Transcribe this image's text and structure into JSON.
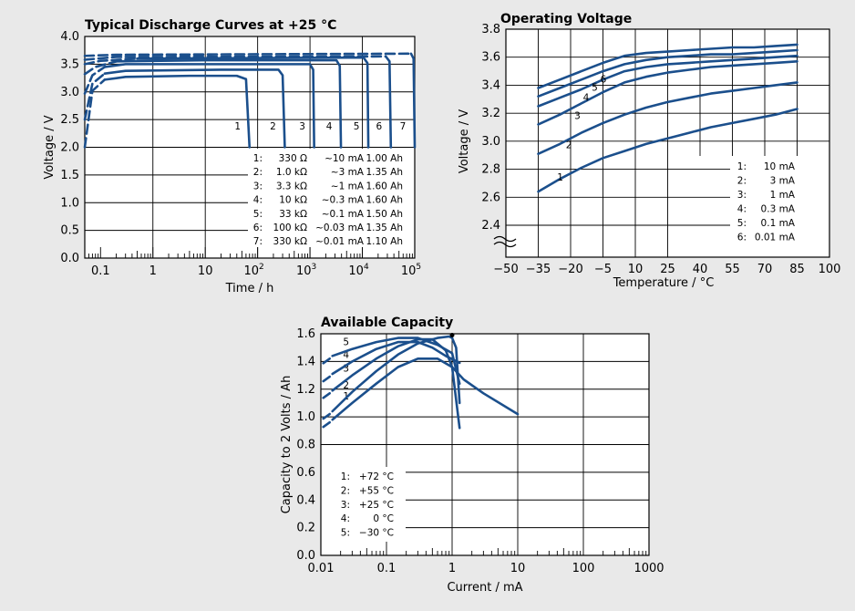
{
  "colors": {
    "background": "#e9e9e9",
    "plot_bg": "#ffffff",
    "curve": "#1b4f8c",
    "grid": "#000000"
  },
  "chart_data": [
    {
      "type": "line",
      "title": "Typical Discharge Curves at +25 °C",
      "xlabel": "Time / h",
      "ylabel": "Voltage / V",
      "x_scale": "log",
      "xlim": [
        0.05,
        100000
      ],
      "ylim": [
        0,
        4
      ],
      "grid": true,
      "x_ticks": [
        {
          "v": 0.1,
          "label": "0.1"
        },
        {
          "v": 1,
          "label": "1"
        },
        {
          "v": 10,
          "label": "10"
        },
        {
          "v": 100,
          "label": "10",
          "exp": "2"
        },
        {
          "v": 1000,
          "label": "10",
          "exp": "3"
        },
        {
          "v": 10000,
          "label": "10",
          "exp": "4"
        },
        {
          "v": 100000,
          "label": "10",
          "exp": "5"
        }
      ],
      "y_ticks": [
        "0.0",
        "0.5",
        "1.0",
        "1.5",
        "2.0",
        "2.5",
        "3.0",
        "3.5",
        "4.0"
      ],
      "series": [
        {
          "name": "1",
          "points": [
            [
              0.05,
              2.0
            ],
            [
              0.07,
              3.02
            ],
            [
              0.12,
              3.22
            ],
            [
              0.3,
              3.27
            ],
            [
              5,
              3.29
            ],
            [
              40,
              3.29
            ],
            [
              60,
              3.23
            ],
            [
              70,
              2.0
            ]
          ]
        },
        {
          "name": "2",
          "points": [
            [
              0.05,
              2.5
            ],
            [
              0.07,
              3.15
            ],
            [
              0.12,
              3.33
            ],
            [
              0.3,
              3.38
            ],
            [
              20,
              3.4
            ],
            [
              250,
              3.4
            ],
            [
              300,
              3.3
            ],
            [
              330,
              2.0
            ]
          ]
        },
        {
          "name": "3",
          "points": [
            [
              0.05,
              2.97
            ],
            [
              0.07,
              3.3
            ],
            [
              0.12,
              3.45
            ],
            [
              0.3,
              3.5
            ],
            [
              50,
              3.5
            ],
            [
              1000,
              3.5
            ],
            [
              1150,
              3.4
            ],
            [
              1200,
              2.0
            ]
          ]
        },
        {
          "name": "4",
          "points": [
            [
              0.05,
              3.32
            ],
            [
              0.08,
              3.45
            ],
            [
              0.2,
              3.55
            ],
            [
              10,
              3.57
            ],
            [
              3200,
              3.57
            ],
            [
              3700,
              3.47
            ],
            [
              3900,
              2.0
            ]
          ]
        },
        {
          "name": "5",
          "points": [
            [
              0.05,
              3.5
            ],
            [
              0.1,
              3.56
            ],
            [
              0.5,
              3.6
            ],
            [
              10500,
              3.62
            ],
            [
              12500,
              3.52
            ],
            [
              13000,
              2.0
            ]
          ]
        },
        {
          "name": "6",
          "points": [
            [
              0.05,
              3.58
            ],
            [
              0.2,
              3.63
            ],
            [
              28000,
              3.64
            ],
            [
              33000,
              3.55
            ],
            [
              35000,
              2.0
            ]
          ]
        },
        {
          "name": "7",
          "points": [
            [
              0.05,
              3.65
            ],
            [
              0.2,
              3.67
            ],
            [
              85000,
              3.69
            ],
            [
              95000,
              3.6
            ],
            [
              100000,
              2.0
            ]
          ]
        }
      ],
      "legend": [
        {
          "n": "1:",
          "load": "330 Ω",
          "current": "~10 mA",
          "capacity": "1.00 Ah"
        },
        {
          "n": "2:",
          "load": "1.0 kΩ",
          "current": "~3 mA",
          "capacity": "1.35 Ah"
        },
        {
          "n": "3:",
          "load": "3.3 kΩ",
          "current": "~1 mA",
          "capacity": "1.60 Ah"
        },
        {
          "n": "4:",
          "load": "10 kΩ",
          "current": "~0.3 mA",
          "capacity": "1.60 Ah"
        },
        {
          "n": "5:",
          "load": "33 kΩ",
          "current": "~0.1 mA",
          "capacity": "1.50 Ah"
        },
        {
          "n": "6:",
          "load": "100 kΩ",
          "current": "~0.03 mA",
          "capacity": "1.35 Ah"
        },
        {
          "n": "7:",
          "load": "330 kΩ",
          "current": "~0.01 mA",
          "capacity": "1.10 Ah"
        }
      ]
    },
    {
      "type": "line",
      "title": "Operating Voltage",
      "xlabel": "Temperature / °C",
      "ylabel": "Voltage / V",
      "xlim": [
        -50,
        100
      ],
      "ylim": [
        2.2,
        3.8
      ],
      "axis_break": true,
      "grid": true,
      "x_ticks": [
        "−50",
        "−35",
        "−20",
        "−5",
        "10",
        "25",
        "40",
        "55",
        "70",
        "85",
        "100"
      ],
      "y_ticks": [
        "2.4",
        "2.6",
        "2.8",
        "3.0",
        "3.2",
        "3.4",
        "3.6",
        "3.8"
      ],
      "series": [
        {
          "name": "1",
          "x": [
            -35,
            -25,
            -15,
            -5,
            5,
            15,
            25,
            35,
            45,
            55,
            65,
            75,
            85
          ],
          "y": [
            2.64,
            2.73,
            2.81,
            2.88,
            2.93,
            2.98,
            3.02,
            3.06,
            3.1,
            3.13,
            3.16,
            3.19,
            3.23
          ]
        },
        {
          "name": "2",
          "x": [
            -35,
            -25,
            -15,
            -5,
            5,
            15,
            25,
            35,
            45,
            55,
            65,
            75,
            85
          ],
          "y": [
            2.91,
            2.98,
            3.06,
            3.13,
            3.19,
            3.24,
            3.28,
            3.31,
            3.34,
            3.36,
            3.38,
            3.4,
            3.42
          ]
        },
        {
          "name": "3",
          "x": [
            -35,
            -25,
            -15,
            -5,
            5,
            15,
            25,
            35,
            45,
            55,
            65,
            75,
            85
          ],
          "y": [
            3.12,
            3.19,
            3.27,
            3.35,
            3.42,
            3.46,
            3.49,
            3.51,
            3.53,
            3.54,
            3.55,
            3.56,
            3.57
          ]
        },
        {
          "name": "4",
          "x": [
            -35,
            -25,
            -15,
            -5,
            5,
            15,
            25,
            35,
            45,
            55,
            65,
            75,
            85
          ],
          "y": [
            3.25,
            3.31,
            3.37,
            3.44,
            3.5,
            3.53,
            3.55,
            3.56,
            3.57,
            3.58,
            3.59,
            3.6,
            3.61
          ]
        },
        {
          "name": "5",
          "x": [
            -35,
            -25,
            -15,
            -5,
            5,
            15,
            25,
            35,
            45,
            55,
            65,
            75,
            85
          ],
          "y": [
            3.32,
            3.38,
            3.44,
            3.5,
            3.55,
            3.58,
            3.6,
            3.61,
            3.62,
            3.62,
            3.63,
            3.64,
            3.65
          ]
        },
        {
          "name": "6",
          "x": [
            -35,
            -25,
            -15,
            -5,
            5,
            15,
            25,
            35,
            45,
            55,
            65,
            75,
            85
          ],
          "y": [
            3.38,
            3.44,
            3.5,
            3.56,
            3.61,
            3.63,
            3.64,
            3.65,
            3.66,
            3.67,
            3.67,
            3.68,
            3.69
          ]
        }
      ],
      "legend": [
        {
          "n": "1:",
          "value": "10 mA"
        },
        {
          "n": "2:",
          "value": "3 mA"
        },
        {
          "n": "3:",
          "value": "1 mA"
        },
        {
          "n": "4:",
          "value": "0.3 mA"
        },
        {
          "n": "5:",
          "value": "0.1 mA"
        },
        {
          "n": "6:",
          "value": "0.01 mA"
        }
      ]
    },
    {
      "type": "line",
      "title": "Available Capacity",
      "xlabel": "Current / mA",
      "ylabel": "Capacity to 2 Volts / Ah",
      "x_scale": "log",
      "xlim": [
        0.01,
        1000
      ],
      "ylim": [
        0,
        1.6
      ],
      "grid": true,
      "x_ticks": [
        {
          "v": 0.01,
          "label": "0.01"
        },
        {
          "v": 0.1,
          "label": "0.1"
        },
        {
          "v": 1,
          "label": "1"
        },
        {
          "v": 10,
          "label": "10"
        },
        {
          "v": 100,
          "label": "100"
        },
        {
          "v": 1000,
          "label": "1000"
        }
      ],
      "y_ticks": [
        "0.0",
        "0.2",
        "0.4",
        "0.6",
        "0.8",
        "1.0",
        "1.2",
        "1.4",
        "1.6"
      ],
      "series": [
        {
          "name": "1",
          "dashed": false,
          "points": [
            [
              0.015,
              0.98
            ],
            [
              0.03,
              1.1
            ],
            [
              0.07,
              1.24
            ],
            [
              0.15,
              1.36
            ],
            [
              0.3,
              1.42
            ],
            [
              0.6,
              1.42
            ],
            [
              1.0,
              1.36
            ],
            [
              1.5,
              1.27
            ],
            [
              3,
              1.17
            ],
            [
              10,
              1.02
            ]
          ]
        },
        {
          "name": "2",
          "dashed": false,
          "points": [
            [
              0.015,
              1.04
            ],
            [
              0.03,
              1.18
            ],
            [
              0.07,
              1.33
            ],
            [
              0.15,
              1.45
            ],
            [
              0.3,
              1.53
            ],
            [
              0.6,
              1.57
            ],
            [
              0.9,
              1.58
            ],
            [
              1.0,
              1.57
            ],
            [
              1.15,
              1.5
            ],
            [
              1.3,
              1.1
            ]
          ]
        },
        {
          "name": "3",
          "dashed": false,
          "points": [
            [
              0.015,
              1.19
            ],
            [
              0.03,
              1.3
            ],
            [
              0.07,
              1.42
            ],
            [
              0.15,
              1.51
            ],
            [
              0.3,
              1.56
            ],
            [
              0.5,
              1.56
            ],
            [
              0.8,
              1.48
            ],
            [
              1.0,
              1.36
            ],
            [
              1.3,
              0.92
            ]
          ]
        },
        {
          "name": "4",
          "dashed": false,
          "points": [
            [
              0.015,
              1.31
            ],
            [
              0.03,
              1.4
            ],
            [
              0.07,
              1.49
            ],
            [
              0.15,
              1.54
            ],
            [
              0.3,
              1.54
            ],
            [
              0.5,
              1.5
            ],
            [
              0.8,
              1.44
            ],
            [
              1.3,
              1.39
            ]
          ]
        },
        {
          "name": "5",
          "dashed": false,
          "points": [
            [
              0.015,
              1.44
            ],
            [
              0.03,
              1.49
            ],
            [
              0.07,
              1.54
            ],
            [
              0.15,
              1.57
            ],
            [
              0.3,
              1.57
            ],
            [
              0.6,
              1.52
            ],
            [
              1.0,
              1.46
            ],
            [
              1.3,
              1.24
            ]
          ]
        }
      ],
      "legend": [
        {
          "n": "1:",
          "value": "+72 °C"
        },
        {
          "n": "2:",
          "value": "+55 °C"
        },
        {
          "n": "3:",
          "value": "+25 °C"
        },
        {
          "n": "4:",
          "value": "0 °C"
        },
        {
          "n": "5:",
          "value": "−30 °C"
        }
      ]
    }
  ]
}
